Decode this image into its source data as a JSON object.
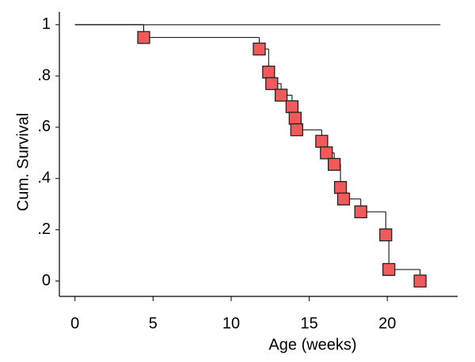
{
  "chart_data": {
    "type": "step",
    "x_label": "Age (weeks)",
    "y_label": "Cum. Survival",
    "xlim": [
      -1,
      24.5
    ],
    "ylim": [
      -0.06,
      1.05
    ],
    "xticks": [
      0,
      5,
      10,
      15,
      20
    ],
    "yticks": [
      0,
      {
        "value": 0.2,
        "label": ".2"
      },
      {
        "value": 0.4,
        "label": ".4"
      },
      {
        "value": 0.6,
        "label": ".6"
      },
      {
        "value": 0.8,
        "label": ".8"
      },
      1
    ],
    "series": [
      {
        "color": "#000000",
        "marker_color": "#f05a5a",
        "x": [
          0,
          4.4,
          11.8,
          12.4,
          12.6,
          13.2,
          13.9,
          14.1,
          14.2,
          15.8,
          16.1,
          16.6,
          17.0,
          17.2,
          18.3,
          19.9,
          20.1,
          22.1
        ],
        "values": [
          1,
          0.95,
          0.905,
          0.815,
          0.77,
          0.725,
          0.68,
          0.635,
          0.59,
          0.545,
          0.5,
          0.455,
          0.365,
          0.32,
          0.27,
          0.18,
          0.045,
          0
        ]
      },
      {
        "color": "#000000",
        "x": [
          0,
          23.4
        ],
        "values": [
          1,
          1
        ]
      }
    ]
  }
}
